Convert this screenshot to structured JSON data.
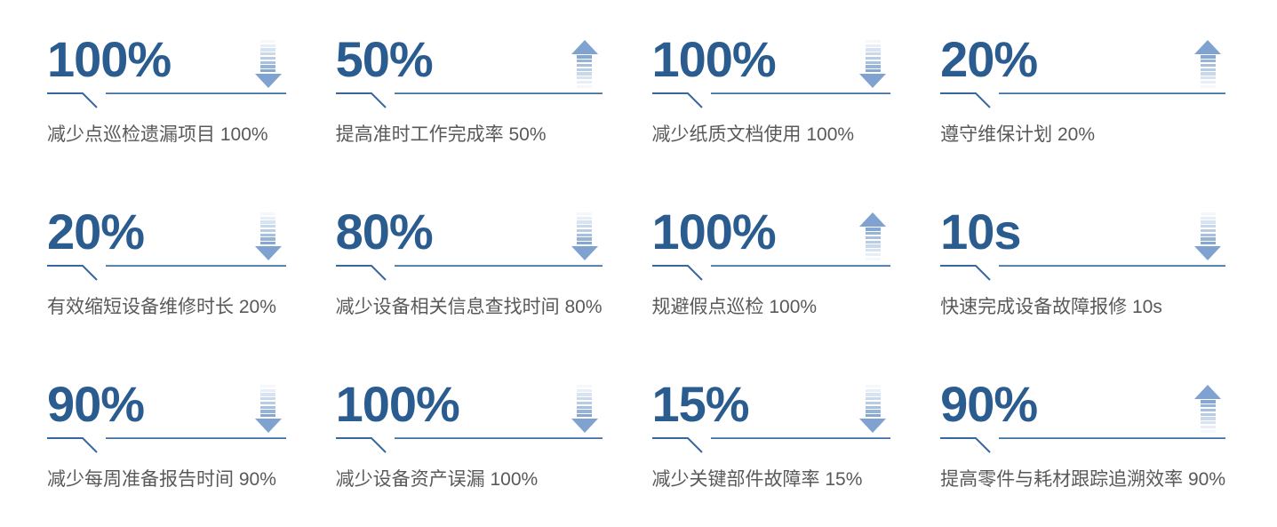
{
  "colors": {
    "number": "#2b5c8f",
    "label": "#595959",
    "line": "#3766a0",
    "arrow": "#7fa2d0"
  },
  "cards": [
    {
      "value": "100%",
      "direction": "down",
      "label": "减少点巡检遗漏项目 100%"
    },
    {
      "value": "50%",
      "direction": "up",
      "label": "提高准时工作完成率 50%"
    },
    {
      "value": "100%",
      "direction": "down",
      "label": "减少纸质文档使用 100%"
    },
    {
      "value": "20%",
      "direction": "up",
      "label": "遵守维保计划 20%"
    },
    {
      "value": "20%",
      "direction": "down",
      "label": "有效缩短设备维修时长 20%"
    },
    {
      "value": "80%",
      "direction": "down",
      "label": "减少设备相关信息查找时间 80%"
    },
    {
      "value": "100%",
      "direction": "up",
      "label": "规避假点巡检 100%"
    },
    {
      "value": "10s",
      "direction": "down",
      "label": "快速完成设备故障报修 10s"
    },
    {
      "value": "90%",
      "direction": "down",
      "label": "减少每周准备报告时间 90%"
    },
    {
      "value": "100%",
      "direction": "down",
      "label": "减少设备资产误漏 100%"
    },
    {
      "value": "15%",
      "direction": "down",
      "label": "减少关键部件故障率 15%"
    },
    {
      "value": "90%",
      "direction": "up",
      "label": "提高零件与耗材跟踪追溯效率 90%"
    }
  ]
}
